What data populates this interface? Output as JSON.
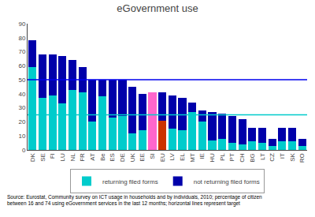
{
  "chart_data": {
    "type": "bar",
    "title": "eGovernment use",
    "categories": [
      "DK",
      "SE",
      "FI",
      "LU",
      "NL",
      "FR",
      "AT",
      "Be",
      "ES",
      "DE",
      "UK",
      "EE",
      "SI",
      "EU",
      "LV",
      "EL",
      "MT",
      "IE",
      "HU",
      "PL",
      "PT",
      "CH",
      "BG",
      "LT",
      "CZ",
      "IT",
      "SK",
      "RO"
    ],
    "series": [
      {
        "name": "returning filed forms",
        "values": [
          59,
          37,
          39,
          33,
          43,
          41,
          20,
          38,
          23,
          24,
          12,
          14,
          41,
          21,
          15,
          14,
          27,
          20,
          7,
          8,
          5,
          4,
          6,
          5,
          3,
          6,
          6,
          3
        ],
        "colors": [
          "#00CCCC",
          "#00CCCC",
          "#00CCCC",
          "#00CCCC",
          "#00CCCC",
          "#00CCCC",
          "#00CCCC",
          "#00CCCC",
          "#00CCCC",
          "#00CCCC",
          "#00CCCC",
          "#00CCCC",
          "#FF66CC",
          "#CC3300",
          "#00CCCC",
          "#00CCCC",
          "#00CCCC",
          "#00CCCC",
          "#00CCCC",
          "#00CCCC",
          "#00CCCC",
          "#00CCCC",
          "#00CCCC",
          "#00CCCC",
          "#00CCCC",
          "#00CCCC",
          "#00CCCC",
          "#00CCCC"
        ]
      },
      {
        "name": "not returning filed forms",
        "values": [
          19,
          31,
          29,
          34,
          21,
          18,
          30,
          12,
          27,
          26,
          33,
          26,
          0,
          20,
          24,
          23,
          7,
          8,
          20,
          18,
          19,
          18,
          10,
          11,
          5,
          10,
          10,
          5
        ],
        "color": "#0000AA"
      }
    ],
    "stacked": true,
    "reference_lines": [
      {
        "value": 50,
        "color": "#0000EE"
      },
      {
        "value": 25,
        "color": "#00CCCC"
      }
    ],
    "ylim": [
      0,
      90
    ],
    "yticks": [
      0,
      10,
      20,
      30,
      40,
      50,
      60,
      70,
      80,
      90
    ],
    "grid": false,
    "legend": "bottom",
    "source": "Source: Eurostat, Community survey on ICT usage in households and by individuals, 2010; percentage of citizen\nbetween 16 and 74 using eGovernment services in the last 12 months; horizontal lines represent target"
  }
}
